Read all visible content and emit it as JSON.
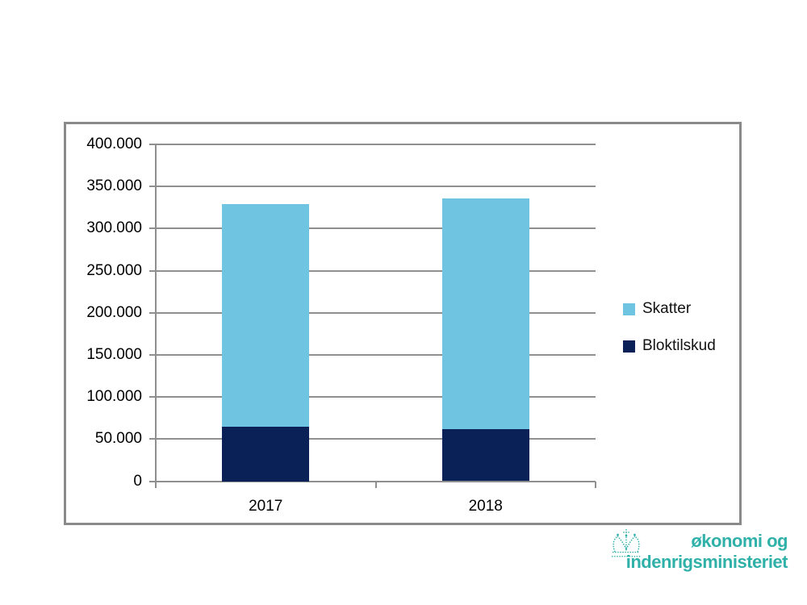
{
  "chart_data": {
    "type": "bar",
    "stacked": true,
    "title": "",
    "xlabel": "",
    "ylabel": "",
    "categories": [
      "2017",
      "2018"
    ],
    "series": [
      {
        "name": "Skatter",
        "color": "#6FC4E2",
        "values": [
          264000,
          274000
        ]
      },
      {
        "name": "Bloktilskud",
        "color": "#0A2158",
        "values": [
          65000,
          62000
        ]
      }
    ],
    "stack_order_bottom_to_top": [
      "Bloktilskud",
      "Skatter"
    ],
    "totals": [
      329000,
      336000
    ],
    "ylim": [
      0,
      400000
    ],
    "ytick_interval": 50000,
    "ytick_labels": [
      "400.000",
      "350.000",
      "300.000",
      "250.000",
      "200.000",
      "150.000",
      "100.000",
      "50.000",
      "0"
    ],
    "grid": true,
    "legend_position": "right-of-plot"
  },
  "legend": {
    "items": [
      {
        "label": "Skatter",
        "color": "#6FC4E2"
      },
      {
        "label": "Bloktilskud",
        "color": "#0A2158"
      }
    ]
  },
  "footer_logo": {
    "line1": "økonomi og",
    "line2": "indenrigsministeriet",
    "color": "#2FB0A8",
    "icon": "crown-icon"
  },
  "colors": {
    "grid": "#8f8f8f",
    "frame_border": "#8a8a8a",
    "axis_text": "#000000"
  }
}
